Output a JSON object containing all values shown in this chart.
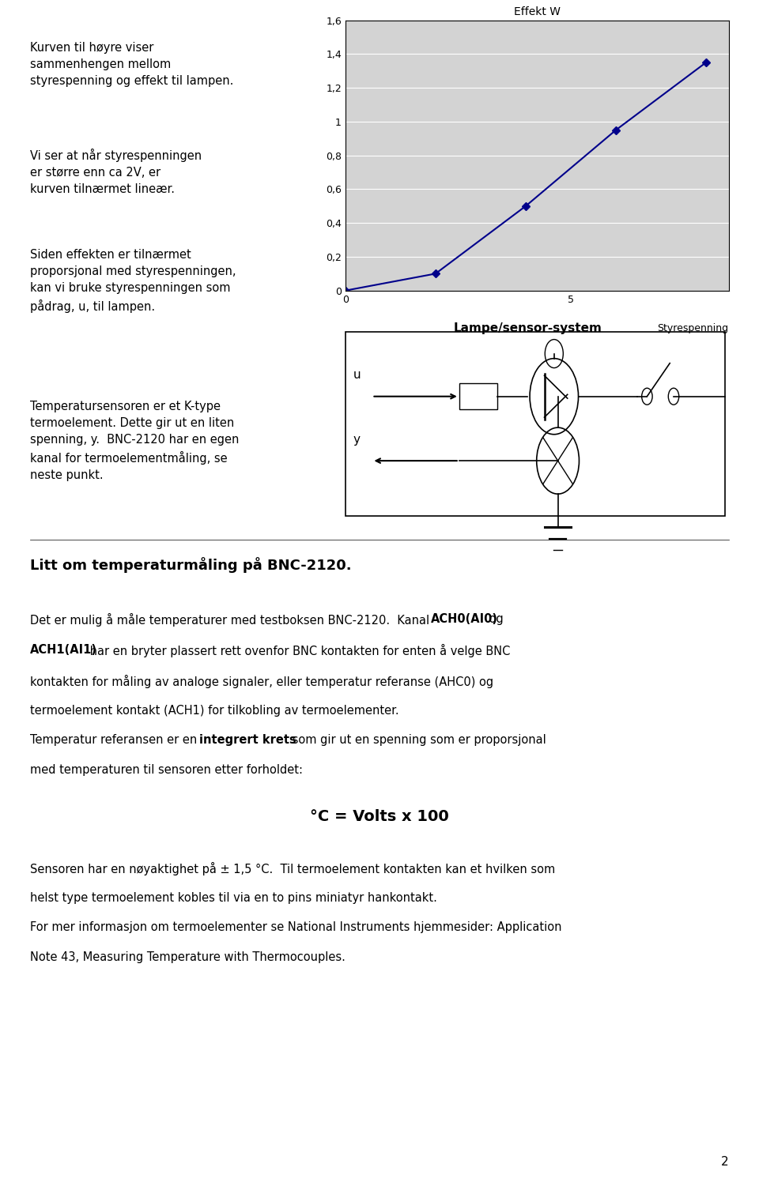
{
  "page_bg": "#ffffff",
  "chart_bg": "#d3d3d3",
  "chart_title": "Effekt W",
  "chart_xlabel": "Styrespenning",
  "x_data": [
    0,
    2,
    4,
    6,
    8
  ],
  "y_data": [
    0.0,
    0.1,
    0.5,
    0.95,
    1.35
  ],
  "y_tick_labels": [
    "0",
    "0,2",
    "0,4",
    "0,6",
    "0,8",
    "1",
    "1,2",
    "1,4",
    "1,6"
  ],
  "line_color": "#00008B",
  "marker_color": "#00008B",
  "page_number": "2"
}
